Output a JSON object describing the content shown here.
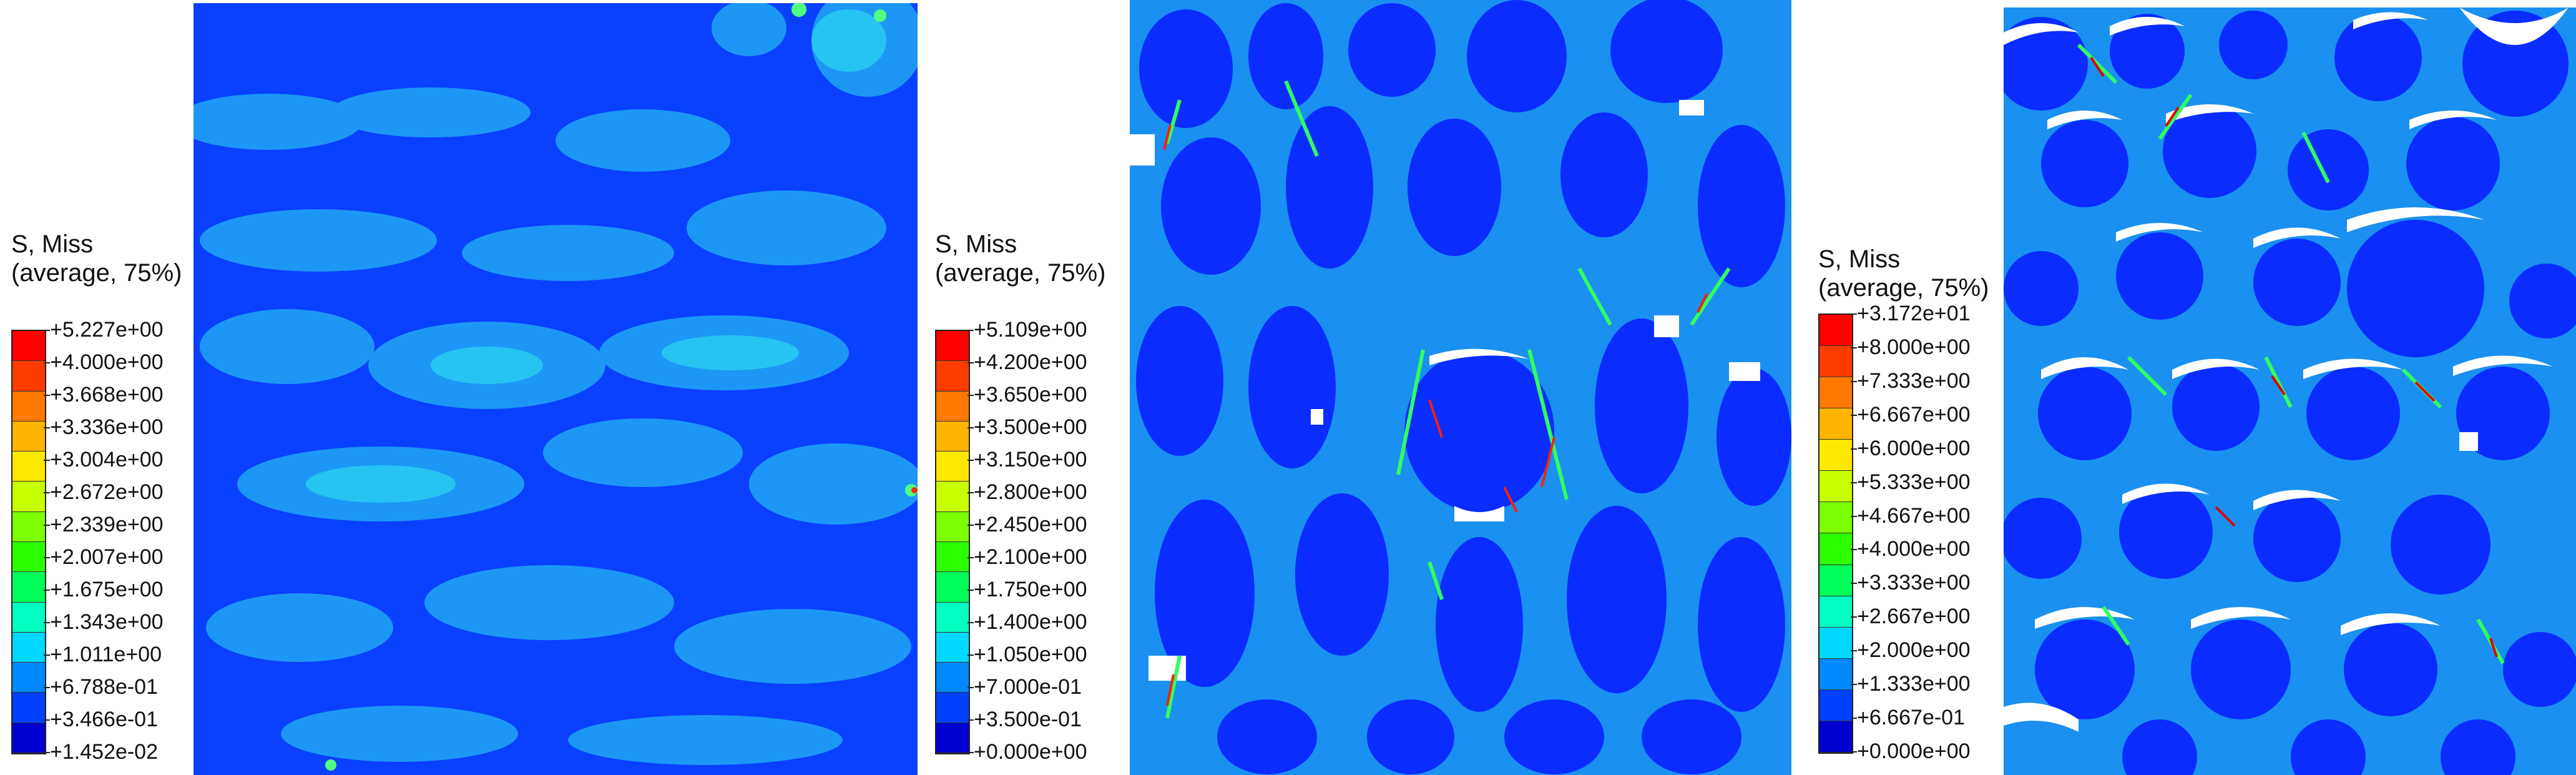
{
  "panels": [
    {
      "legend": {
        "title_line1": "S, Miss",
        "title_line2": "(average, 75%)",
        "labels": [
          "+5.227e+00",
          "+4.000e+00",
          "+3.668e+00",
          "+3.336e+00",
          "+3.004e+00",
          "+2.672e+00",
          "+2.339e+00",
          "+2.007e+00",
          "+1.675e+00",
          "+1.343e+00",
          "+1.011e+00",
          "+6.788e-01",
          "+3.466e-01",
          "+1.452e-02"
        ]
      }
    },
    {
      "legend": {
        "title_line1": "S, Miss",
        "title_line2": "(average, 75%)",
        "labels": [
          "+5.109e+00",
          "+4.200e+00",
          "+3.650e+00",
          "+3.500e+00",
          "+3.150e+00",
          "+2.800e+00",
          "+2.450e+00",
          "+2.100e+00",
          "+1.750e+00",
          "+1.400e+00",
          "+1.050e+00",
          "+7.000e-01",
          "+3.500e-01",
          "+0.000e+00"
        ]
      }
    },
    {
      "legend": {
        "title_line1": "S, Miss",
        "title_line2": "(average, 75%)",
        "labels": [
          "+3.172e+01",
          "+8.000e+00",
          "+7.333e+00",
          "+6.667e+00",
          "+6.000e+00",
          "+5.333e+00",
          "+4.667e+00",
          "+4.000e+00",
          "+3.333e+00",
          "+2.667e+00",
          "+2.000e+00",
          "+1.333e+00",
          "+6.667e-01",
          "+0.000e+00"
        ]
      }
    }
  ],
  "colors": {
    "contour_scale": [
      "#ff0000",
      "#ff3c00",
      "#ff7800",
      "#ffb400",
      "#ffe800",
      "#c8ff00",
      "#7cff00",
      "#2cff00",
      "#00ff5a",
      "#00ffc0",
      "#00d8ff",
      "#0088ff",
      "#0040ff",
      "#0000d0"
    ],
    "base_blue": "#0a3cff",
    "light_blue": "#1ec8f0",
    "void_white": "#ffffff"
  }
}
